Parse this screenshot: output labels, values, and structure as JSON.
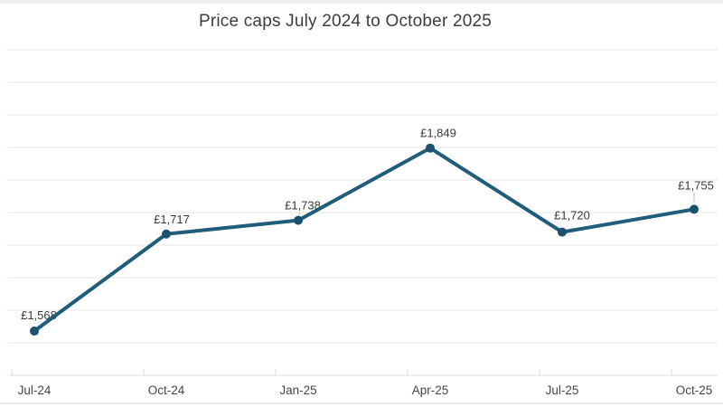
{
  "chart_data": {
    "type": "line",
    "title": "Price caps July 2024 to October 2025",
    "categories": [
      "Jul-24",
      "Oct-24",
      "Jan-25",
      "Apr-25",
      "Jul-25",
      "Oct-25"
    ],
    "values": [
      1568,
      1717,
      1738,
      1849,
      1720,
      1755
    ],
    "value_labels": [
      "£1,568",
      "£1,717",
      "£1,738",
      "£1,849",
      "£1,720",
      "£1,755"
    ],
    "xlabel": "",
    "ylabel": "",
    "ylim": [
      1500,
      2000
    ],
    "grid_step": 50,
    "grid": true,
    "legend": "none",
    "y_tick_labels_visible": false,
    "colors": {
      "line": "#1f5d7b",
      "marker": "#1b5270",
      "title": "#3d3d3d",
      "data_label": "#3a3a3a",
      "axis_label": "#474747",
      "gridline": "#e9e9e9",
      "axis_line": "#e2e2e2",
      "tick": "#d9d9d9",
      "leader": "#c9c9c9",
      "background": "#ffffff"
    }
  }
}
